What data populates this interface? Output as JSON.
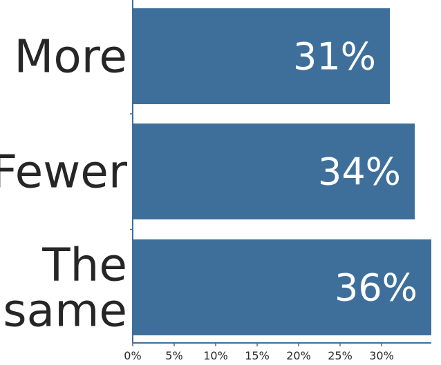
{
  "chart_data": {
    "type": "bar",
    "orientation": "horizontal",
    "categories": [
      [
        "More"
      ],
      [
        "Fewer"
      ],
      [
        "The",
        "same"
      ]
    ],
    "values": [
      31,
      34,
      36
    ],
    "data_labels": [
      "31%",
      "34%",
      "36%"
    ],
    "xlim": [
      0,
      36
    ],
    "xticks": [
      0,
      5,
      10,
      15,
      20,
      25,
      30
    ],
    "xtick_labels": [
      "0%",
      "5%",
      "10%",
      "15%",
      "20%",
      "25%",
      "30%"
    ],
    "grid": false,
    "legend": "none",
    "bar_color": "#3e6f9b",
    "axis_color": "#3e6f9b",
    "text_color": "#262626",
    "label_color": "#ffffff"
  }
}
